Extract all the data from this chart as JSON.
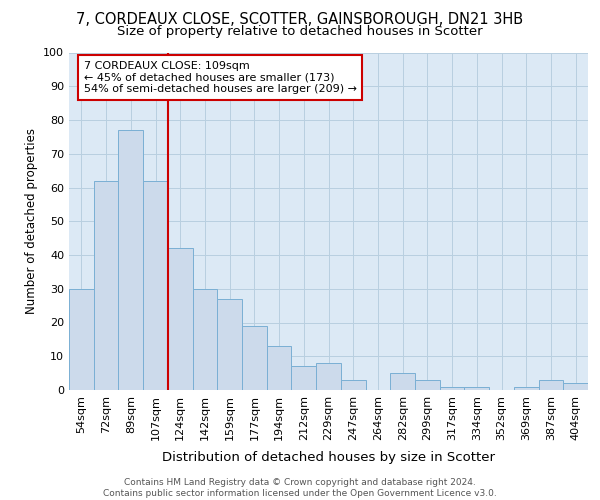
{
  "title1": "7, CORDEAUX CLOSE, SCOTTER, GAINSBOROUGH, DN21 3HB",
  "title2": "Size of property relative to detached houses in Scotter",
  "xlabel": "Distribution of detached houses by size in Scotter",
  "ylabel": "Number of detached properties",
  "categories": [
    "54sqm",
    "72sqm",
    "89sqm",
    "107sqm",
    "124sqm",
    "142sqm",
    "159sqm",
    "177sqm",
    "194sqm",
    "212sqm",
    "229sqm",
    "247sqm",
    "264sqm",
    "282sqm",
    "299sqm",
    "317sqm",
    "334sqm",
    "352sqm",
    "369sqm",
    "387sqm",
    "404sqm"
  ],
  "values": [
    30,
    62,
    77,
    62,
    42,
    30,
    27,
    19,
    13,
    7,
    8,
    3,
    0,
    5,
    3,
    1,
    1,
    0,
    1,
    3,
    2
  ],
  "bar_color": "#ccdaeb",
  "bar_edge_color": "#7aafd4",
  "vline_x_index": 3,
  "vline_color": "#cc0000",
  "annotation_text": "7 CORDEAUX CLOSE: 109sqm\n← 45% of detached houses are smaller (173)\n54% of semi-detached houses are larger (209) →",
  "annotation_box_color": "#cc0000",
  "ylim": [
    0,
    100
  ],
  "yticks": [
    0,
    10,
    20,
    30,
    40,
    50,
    60,
    70,
    80,
    90,
    100
  ],
  "grid_color": "#b8cfe0",
  "background_color": "#dce9f5",
  "footer_text": "Contains HM Land Registry data © Crown copyright and database right 2024.\nContains public sector information licensed under the Open Government Licence v3.0.",
  "title1_fontsize": 10.5,
  "title2_fontsize": 9.5,
  "xlabel_fontsize": 9.5,
  "ylabel_fontsize": 8.5,
  "tick_fontsize": 8,
  "annotation_fontsize": 8,
  "footer_fontsize": 6.5
}
